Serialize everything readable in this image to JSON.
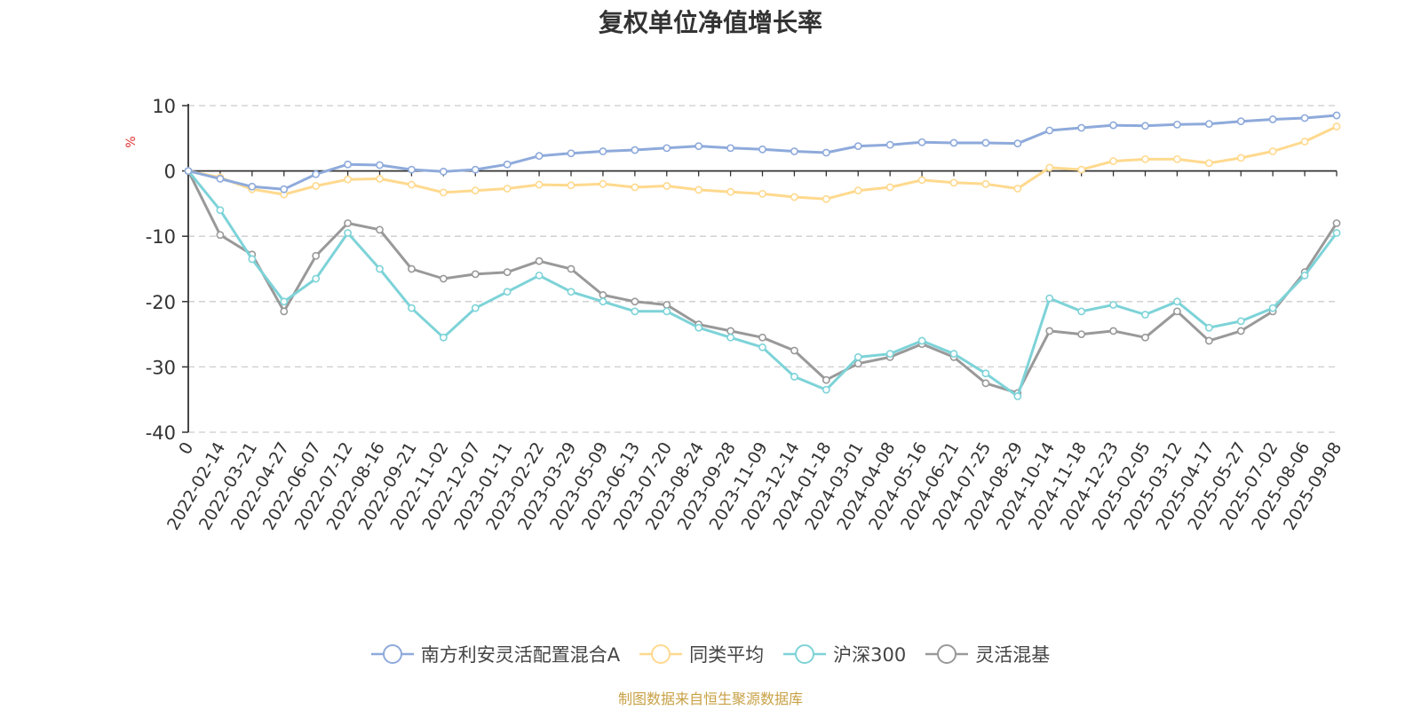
{
  "chart_data": {
    "type": "line",
    "title": "复权单位净值增长率",
    "ylabel": "%",
    "xlabel": "",
    "ylim": [
      -40,
      10
    ],
    "yticks": [
      10,
      0,
      -10,
      -20,
      -30,
      -40
    ],
    "grid": true,
    "legend_position": "bottom",
    "x_tick_labels": [
      "0",
      "2022-02-14",
      "2022-03-21",
      "2022-04-27",
      "2022-06-07",
      "2022-07-12",
      "2022-08-16",
      "2022-09-21",
      "2022-11-02",
      "2022-12-07",
      "2023-01-11",
      "2023-02-22",
      "2023-03-29",
      "2023-05-09",
      "2023-06-13",
      "2023-07-20",
      "2023-08-24",
      "2023-09-28",
      "2023-11-09",
      "2023-12-14",
      "2024-01-18",
      "2024-03-01",
      "2024-04-08",
      "2024-05-16",
      "2024-06-21",
      "2024-07-25",
      "2024-08-29",
      "2024-10-14",
      "2024-11-18",
      "2024-12-23",
      "2025-02-05",
      "2025-03-12",
      "2025-04-17",
      "2025-05-27",
      "2025-07-02",
      "2025-08-06",
      "2025-09-08"
    ],
    "series": [
      {
        "name": "南方利安灵活配置混合A",
        "color": "#8eaadb",
        "values": [
          0,
          -1.2,
          -2.4,
          -2.8,
          -0.5,
          1.0,
          0.9,
          0.2,
          -0.1,
          0.2,
          1.0,
          2.3,
          2.7,
          3.0,
          3.2,
          3.5,
          3.8,
          3.5,
          3.3,
          3.0,
          2.8,
          3.8,
          4.0,
          4.4,
          4.3,
          4.3,
          4.2,
          6.2,
          6.6,
          7.0,
          6.9,
          7.1,
          7.2,
          7.6,
          7.9,
          8.1,
          8.5
        ]
      },
      {
        "name": "同类平均",
        "color": "#ffd98e",
        "values": [
          0,
          -1.0,
          -2.8,
          -3.6,
          -2.3,
          -1.3,
          -1.2,
          -2.1,
          -3.3,
          -3.0,
          -2.7,
          -2.1,
          -2.2,
          -2.0,
          -2.5,
          -2.3,
          -2.9,
          -3.2,
          -3.5,
          -4.0,
          -4.3,
          -3.0,
          -2.5,
          -1.4,
          -1.8,
          -2.0,
          -2.7,
          0.5,
          0.2,
          1.5,
          1.8,
          1.8,
          1.2,
          2.0,
          3.0,
          4.5,
          6.8
        ]
      },
      {
        "name": "沪深300",
        "color": "#7dd3d8",
        "values": [
          0,
          -6.0,
          -13.5,
          -20.0,
          -16.5,
          -9.5,
          -15.0,
          -21.0,
          -25.5,
          -21.0,
          -18.5,
          -16.0,
          -18.5,
          -20.0,
          -21.5,
          -21.5,
          -24.0,
          -25.5,
          -27.0,
          -31.5,
          -33.5,
          -28.5,
          -28.0,
          -26.0,
          -28.0,
          -31.0,
          -34.5,
          -19.5,
          -21.5,
          -20.5,
          -22.0,
          -20.0,
          -24.0,
          -23.0,
          -21.0,
          -16.0,
          -9.5
        ]
      },
      {
        "name": "灵活混基",
        "color": "#999999",
        "values": [
          0,
          -9.8,
          -12.8,
          -21.5,
          -13.0,
          -8.0,
          -9.0,
          -15.0,
          -16.5,
          -15.8,
          -15.5,
          -13.8,
          -15.0,
          -19.0,
          -20.0,
          -20.5,
          -23.5,
          -24.5,
          -25.5,
          -27.5,
          -32.0,
          -29.5,
          -28.5,
          -26.5,
          -28.5,
          -32.5,
          -34.0,
          -24.5,
          -25.0,
          -24.5,
          -25.5,
          -21.5,
          -26.0,
          -24.5,
          -21.5,
          -15.5,
          -8.0
        ]
      }
    ]
  },
  "source_note": "制图数据来自恒生聚源数据库"
}
